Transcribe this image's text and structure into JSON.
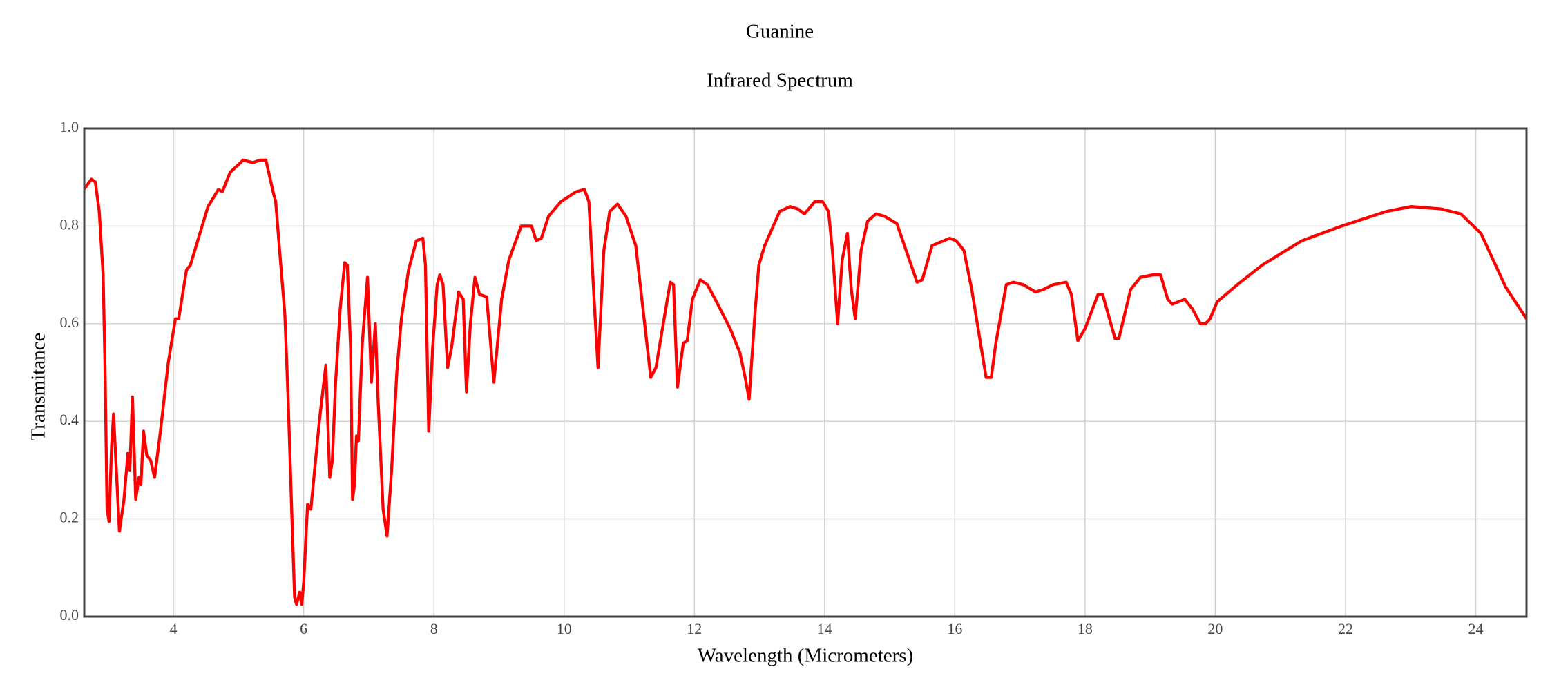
{
  "chart_data": {
    "type": "line",
    "title": "Guanine",
    "subtitle": "Infrared Spectrum",
    "x_label": "Wavelength (Micrometers)",
    "y_label": "Transmitance",
    "color": "#ff0000",
    "grid": true,
    "xlim": [
      2.63,
      24.78
    ],
    "xticks": [
      4,
      6,
      8,
      10,
      12,
      14,
      16,
      18,
      20,
      22,
      24
    ],
    "ylim": [
      0,
      1
    ],
    "yticks": [
      {
        "value": 0,
        "label": "0.0"
      },
      0.2,
      0.4,
      0.6,
      0.8,
      {
        "value": 1,
        "label": "1.0"
      }
    ],
    "x": [
      2.63,
      2.74,
      2.8,
      2.86,
      2.92,
      2.95,
      2.98,
      3.01,
      3.05,
      3.08,
      3.13,
      3.17,
      3.24,
      3.3,
      3.33,
      3.37,
      3.42,
      3.47,
      3.5,
      3.54,
      3.59,
      3.65,
      3.71,
      3.8,
      3.92,
      4.03,
      4.08,
      4.2,
      4.26,
      4.53,
      4.69,
      4.75,
      4.87,
      4.99,
      5.07,
      5.22,
      5.33,
      5.42,
      5.48,
      5.53,
      5.57,
      5.63,
      5.71,
      5.76,
      5.82,
      5.86,
      5.89,
      5.94,
      5.97,
      6.0,
      6.06,
      6.11,
      6.24,
      6.34,
      6.4,
      6.44,
      6.49,
      6.56,
      6.63,
      6.67,
      6.72,
      6.75,
      6.78,
      6.81,
      6.84,
      6.9,
      6.98,
      7.04,
      7.1,
      7.14,
      7.22,
      7.28,
      7.35,
      7.43,
      7.5,
      7.61,
      7.73,
      7.83,
      7.87,
      7.92,
      7.98,
      8.05,
      8.09,
      8.14,
      8.21,
      8.27,
      8.38,
      8.45,
      8.5,
      8.56,
      8.63,
      8.7,
      8.81,
      8.92,
      9.04,
      9.15,
      9.34,
      9.5,
      9.57,
      9.65,
      9.76,
      9.95,
      10.18,
      10.31,
      10.38,
      10.46,
      10.52,
      10.61,
      10.7,
      10.82,
      10.95,
      11.1,
      11.33,
      11.41,
      11.56,
      11.63,
      11.68,
      11.74,
      11.83,
      11.89,
      11.97,
      12.09,
      12.2,
      12.32,
      12.55,
      12.7,
      12.78,
      12.84,
      12.93,
      12.99,
      13.08,
      13.31,
      13.47,
      13.59,
      13.69,
      13.85,
      13.97,
      14.06,
      14.12,
      14.2,
      14.27,
      14.35,
      14.41,
      14.47,
      14.56,
      14.66,
      14.79,
      14.92,
      15.11,
      15.42,
      15.5,
      15.65,
      15.92,
      16.02,
      16.14,
      16.26,
      16.37,
      16.48,
      16.56,
      16.63,
      16.79,
      16.9,
      17.05,
      17.24,
      17.36,
      17.51,
      17.71,
      17.79,
      17.89,
      18.0,
      18.2,
      18.27,
      18.46,
      18.52,
      18.7,
      18.85,
      19.04,
      19.16,
      19.27,
      19.34,
      19.53,
      19.65,
      19.77,
      19.85,
      19.92,
      20.03,
      20.34,
      20.72,
      21.33,
      21.94,
      22.63,
      23.01,
      23.47,
      23.77,
      24.08,
      24.46,
      24.78
    ],
    "values": [
      0.876,
      0.896,
      0.89,
      0.83,
      0.7,
      0.5,
      0.22,
      0.195,
      0.35,
      0.415,
      0.28,
      0.175,
      0.24,
      0.335,
      0.3,
      0.45,
      0.24,
      0.285,
      0.27,
      0.38,
      0.33,
      0.32,
      0.285,
      0.38,
      0.52,
      0.61,
      0.61,
      0.71,
      0.72,
      0.84,
      0.875,
      0.87,
      0.91,
      0.925,
      0.935,
      0.93,
      0.935,
      0.935,
      0.9,
      0.87,
      0.85,
      0.75,
      0.62,
      0.45,
      0.2,
      0.04,
      0.025,
      0.05,
      0.025,
      0.07,
      0.23,
      0.22,
      0.4,
      0.515,
      0.285,
      0.32,
      0.48,
      0.63,
      0.725,
      0.72,
      0.55,
      0.24,
      0.27,
      0.37,
      0.36,
      0.56,
      0.695,
      0.48,
      0.6,
      0.45,
      0.22,
      0.165,
      0.3,
      0.5,
      0.61,
      0.71,
      0.77,
      0.775,
      0.72,
      0.38,
      0.55,
      0.68,
      0.7,
      0.68,
      0.51,
      0.55,
      0.665,
      0.65,
      0.46,
      0.6,
      0.695,
      0.66,
      0.655,
      0.48,
      0.65,
      0.73,
      0.8,
      0.8,
      0.77,
      0.775,
      0.82,
      0.85,
      0.87,
      0.875,
      0.85,
      0.65,
      0.51,
      0.75,
      0.83,
      0.845,
      0.82,
      0.76,
      0.49,
      0.51,
      0.63,
      0.685,
      0.68,
      0.47,
      0.56,
      0.565,
      0.65,
      0.69,
      0.68,
      0.65,
      0.59,
      0.54,
      0.49,
      0.445,
      0.62,
      0.72,
      0.76,
      0.83,
      0.84,
      0.835,
      0.825,
      0.85,
      0.85,
      0.83,
      0.75,
      0.6,
      0.73,
      0.785,
      0.67,
      0.61,
      0.75,
      0.81,
      0.825,
      0.82,
      0.805,
      0.685,
      0.69,
      0.76,
      0.775,
      0.77,
      0.75,
      0.67,
      0.58,
      0.49,
      0.49,
      0.56,
      0.68,
      0.685,
      0.68,
      0.665,
      0.67,
      0.68,
      0.685,
      0.66,
      0.565,
      0.59,
      0.66,
      0.66,
      0.57,
      0.57,
      0.67,
      0.695,
      0.7,
      0.7,
      0.65,
      0.64,
      0.65,
      0.63,
      0.6,
      0.6,
      0.61,
      0.645,
      0.68,
      0.72,
      0.77,
      0.8,
      0.83,
      0.84,
      0.835,
      0.825,
      0.785,
      0.675,
      0.61
    ]
  }
}
